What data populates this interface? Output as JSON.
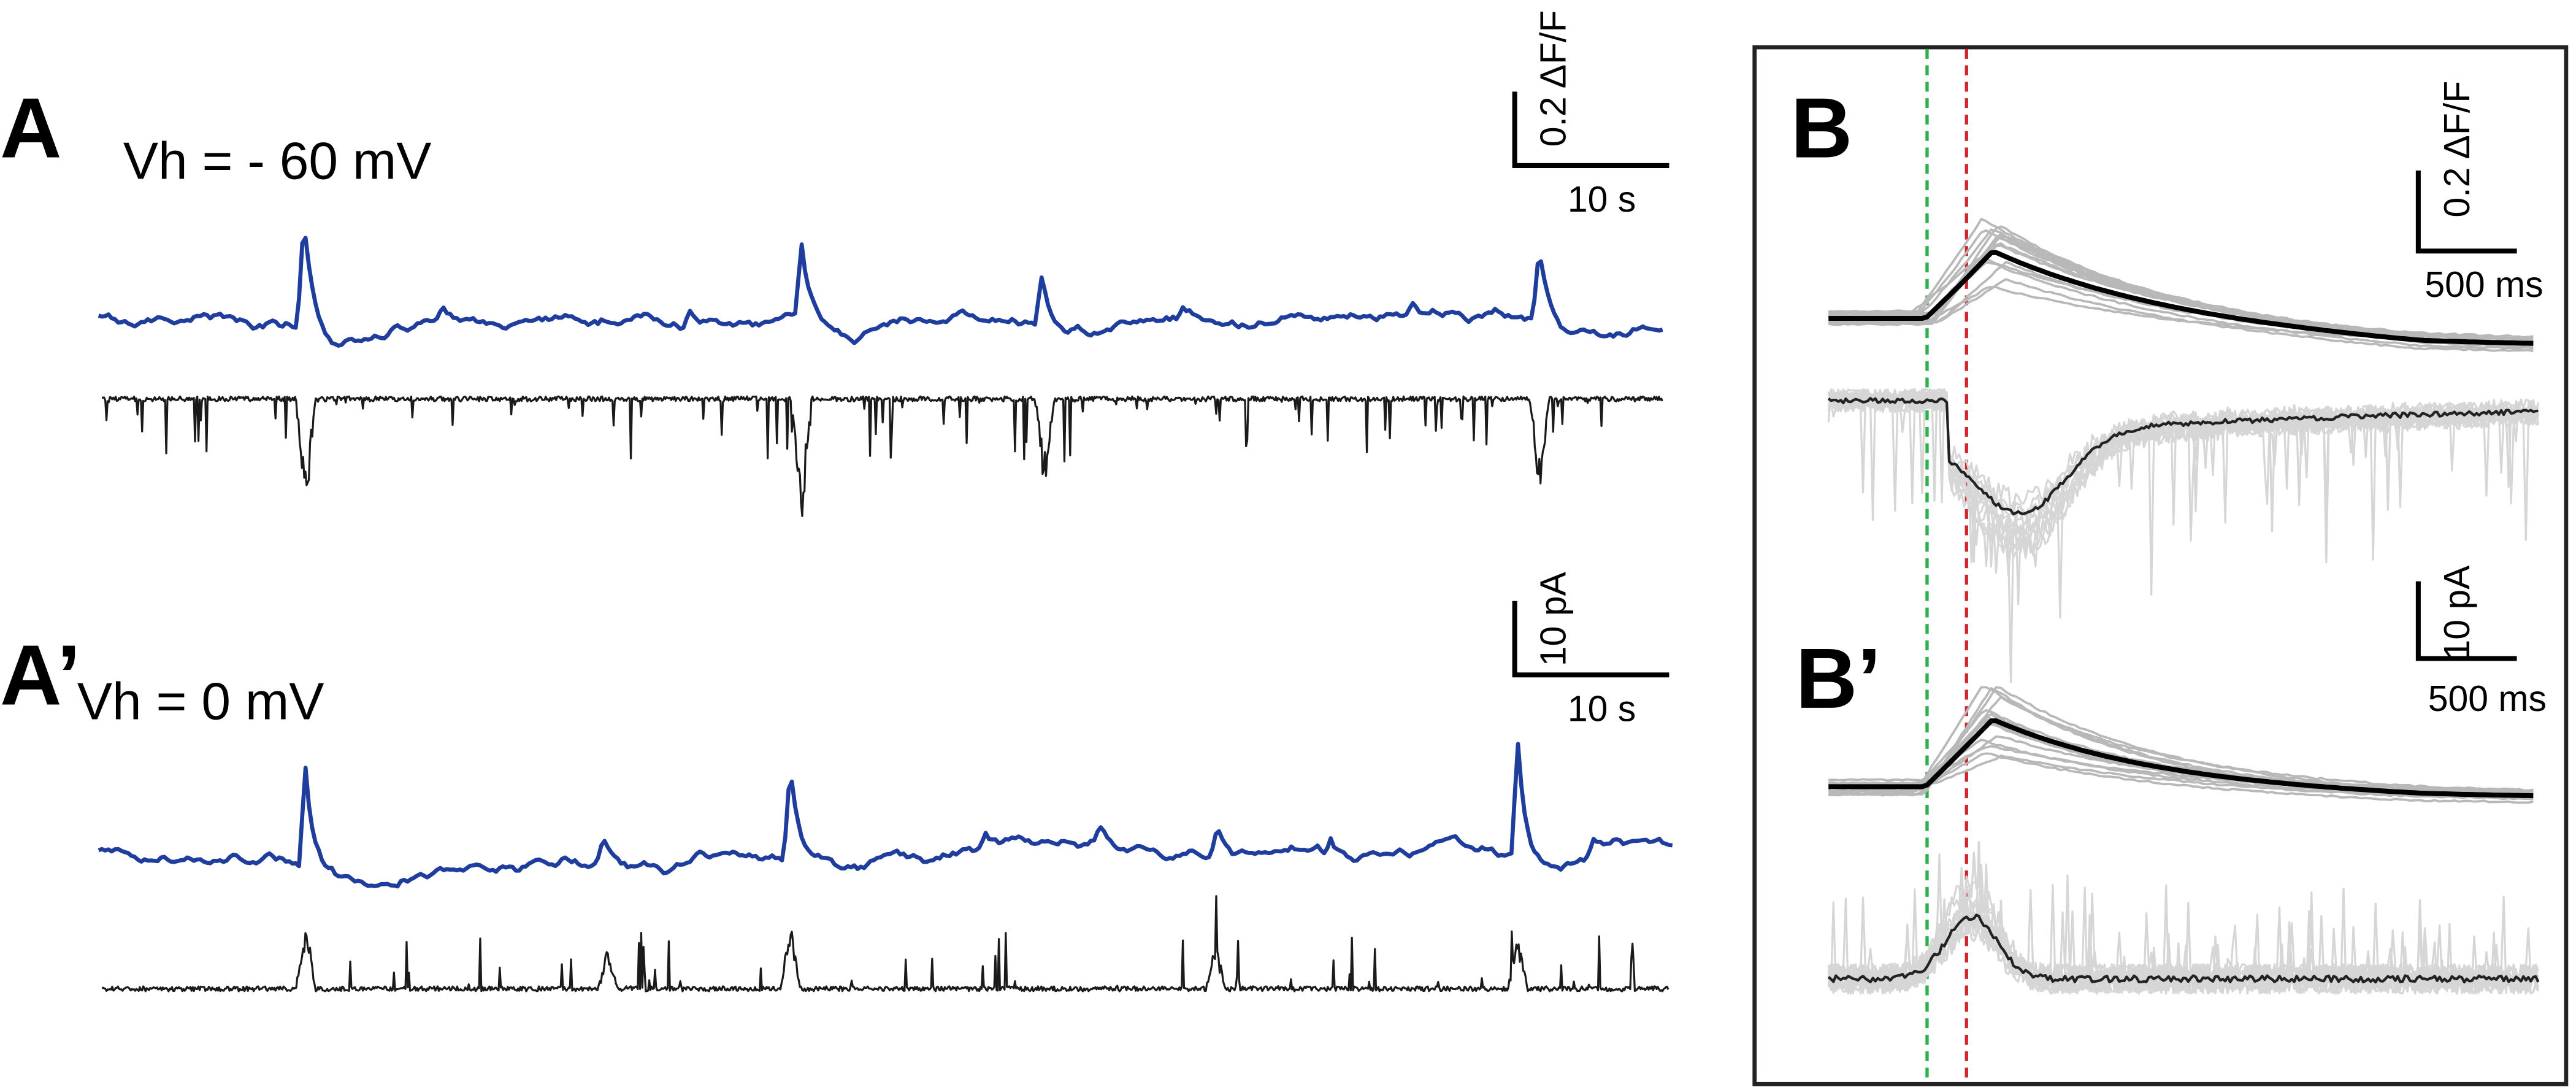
{
  "panel_a": {
    "label": "A",
    "condition": "Vh = - 60 mV",
    "scale_y": "0.2 ΔF/F",
    "scale_x": "10 s"
  },
  "panel_a_prime": {
    "label": "A’",
    "condition": "Vh = 0 mV",
    "scale_y": "10 pA",
    "scale_x": "10 s"
  },
  "panel_b": {
    "label": "B",
    "scale_y": "0.2 ΔF/F",
    "scale_x": "500 ms"
  },
  "panel_b_prime": {
    "label": "B’",
    "scale_y": "10 pA",
    "scale_x": "500 ms"
  }
}
